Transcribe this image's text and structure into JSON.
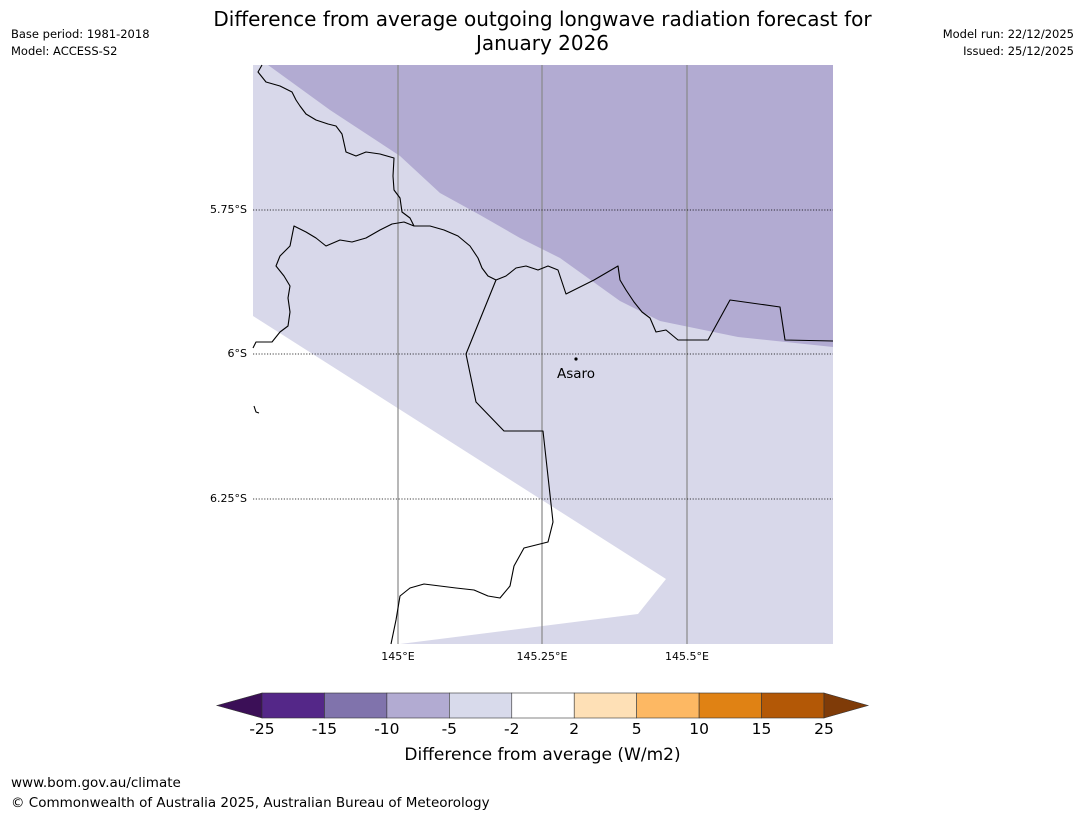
{
  "header": {
    "title_line1": "Difference from average outgoing longwave radiation forecast for",
    "title_line2": "January 2026",
    "base_period": "Base period: 1981-2018",
    "model": "Model: ACCESS-S2",
    "model_run": "Model run: 22/12/2025",
    "issued": "Issued: 25/12/2025"
  },
  "map": {
    "lat_labels": [
      "5.75°S",
      "6°S",
      "6.25°S"
    ],
    "lon_labels": [
      "145°E",
      "145.25°E",
      "145.5°E"
    ],
    "place_name": "Asaro",
    "colors": {
      "anomaly_minus_10_to_minus_5": "#b2abd2",
      "anomaly_minus_5_to_minus_2": "#d8d8ea",
      "neutral": "#ffffff",
      "coastline": "#000000",
      "meridian": "#888888"
    }
  },
  "colorbar": {
    "title": "Difference from average (W/m2)",
    "ticks": [
      "-25",
      "-15",
      "-10",
      "-5",
      "-2",
      "2",
      "5",
      "10",
      "15",
      "25"
    ],
    "colors": [
      "#3b0f57",
      "#542788",
      "#8073ac",
      "#b2abd2",
      "#d8daeb",
      "#ffffff",
      "#fee0b6",
      "#fdb863",
      "#e08214",
      "#b35806",
      "#7f3b08"
    ]
  },
  "footer": {
    "url": "www.bom.gov.au/climate",
    "copyright": "© Commonwealth of Australia 2025, Australian Bureau of Meteorology"
  }
}
